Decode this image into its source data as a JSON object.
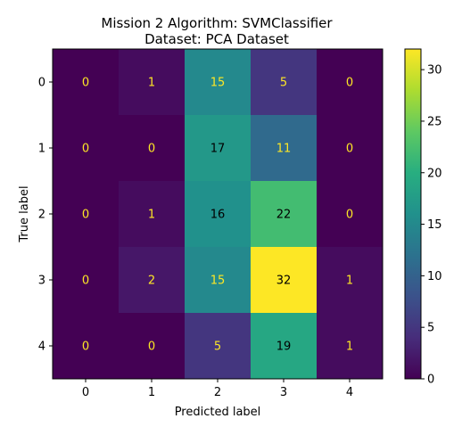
{
  "chart_data": {
    "type": "heatmap",
    "title": "Mission 2 Algorithm: SVMClassifier",
    "subtitle": "Dataset: PCA Dataset",
    "xlabel": "Predicted label",
    "ylabel": "True label",
    "x_categories": [
      "0",
      "1",
      "2",
      "3",
      "4"
    ],
    "y_categories": [
      "0",
      "1",
      "2",
      "3",
      "4"
    ],
    "values": [
      [
        0,
        1,
        15,
        5,
        0
      ],
      [
        0,
        0,
        17,
        11,
        0
      ],
      [
        0,
        1,
        16,
        22,
        0
      ],
      [
        0,
        2,
        15,
        32,
        1
      ],
      [
        0,
        0,
        5,
        19,
        1
      ]
    ],
    "colormap": "viridis",
    "colorbar": {
      "range": [
        0,
        32
      ],
      "ticks": [
        "0",
        "5",
        "10",
        "15",
        "20",
        "25",
        "30"
      ]
    },
    "text_colors": {
      "light": "#fde725",
      "dark": "#000000"
    }
  }
}
